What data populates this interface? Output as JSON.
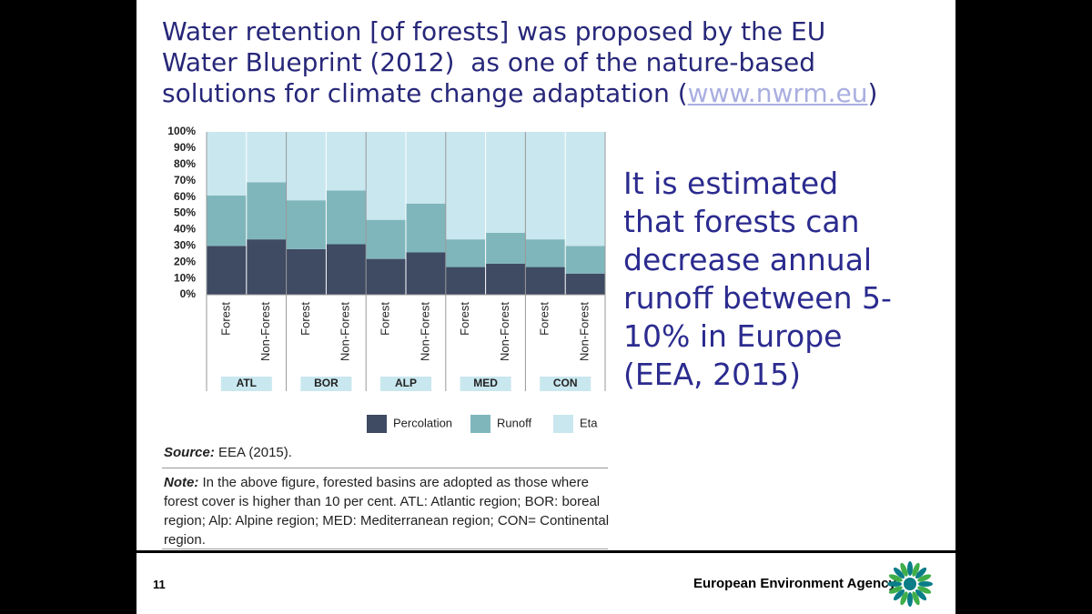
{
  "title": {
    "lines": [
      "Water retention [of forests] was proposed by the EU",
      "Water Blueprint (2012)  as one of the nature-based",
      "solutions for climate change adaptation ("
    ],
    "link": "www.nwrm.eu",
    "end": ")"
  },
  "side_text": [
    "It is estimated",
    "that forests can",
    "decrease annual",
    "runoff between 5-",
    "10% in Europe",
    "(EEA, 2015)"
  ],
  "source": {
    "label": "Source:",
    "text": "EEA (2015)."
  },
  "note": {
    "label": "Note:",
    "text": "In the above figure, forested basins are adopted as those where forest cover is higher than 10 per cent. ATL: Atlantic region; BOR: boreal region; Alp: Alpine region; MED: Mediterranean region; CON= Continental region."
  },
  "footer": {
    "page": "11",
    "agency": "European Environment Agency"
  },
  "chart_data": {
    "type": "stacked_bar",
    "categories": [
      "Forest",
      "Non-Forest",
      "Forest",
      "Non-Forest",
      "Forest",
      "Non-Forest",
      "Forest",
      "Non-Forest",
      "Forest",
      "Non-Forest"
    ],
    "groups": [
      "ATL",
      "BOR",
      "ALP",
      "MED",
      "CON"
    ],
    "series": [
      {
        "name": "Percolation",
        "color": "#3f4a63",
        "values": [
          30,
          34,
          28,
          31,
          22,
          26,
          17,
          19,
          17,
          13
        ]
      },
      {
        "name": "Runoff",
        "color": "#7fb6bc",
        "values": [
          31,
          35,
          30,
          33,
          24,
          30,
          17,
          19,
          17,
          17
        ]
      },
      {
        "name": "Eta",
        "color": "#c9e7ef",
        "values": [
          39,
          31,
          42,
          36,
          54,
          44,
          66,
          62,
          66,
          70
        ]
      }
    ],
    "ylim": [
      0,
      100
    ],
    "yticks": [
      {
        "value": 0,
        "label": "0%"
      },
      {
        "value": 10,
        "label": "10%"
      },
      {
        "value": 20,
        "label": "20%"
      },
      {
        "value": 30,
        "label": "30%"
      },
      {
        "value": 40,
        "label": "40%"
      },
      {
        "value": 50,
        "label": "50%"
      },
      {
        "value": 60,
        "label": "60%"
      },
      {
        "value": 70,
        "label": "70%"
      },
      {
        "value": 80,
        "label": "80%"
      },
      {
        "value": 90,
        "label": "90%"
      },
      {
        "value": 100,
        "label": "100%"
      }
    ],
    "legend": "bottom-right"
  }
}
